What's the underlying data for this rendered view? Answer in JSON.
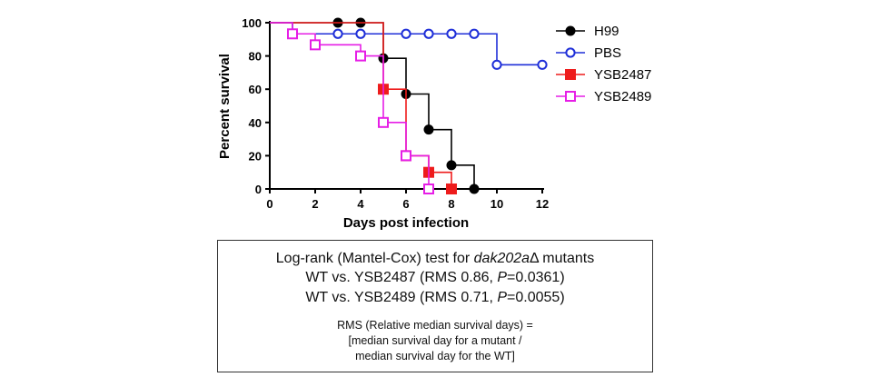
{
  "chart_data": {
    "type": "step",
    "xlabel": "Days post infection",
    "ylabel": "Percent survival",
    "xlim": [
      0,
      12
    ],
    "ylim": [
      0,
      100
    ],
    "xticks": [
      0,
      2,
      4,
      6,
      8,
      10,
      12
    ],
    "yticks": [
      0,
      20,
      40,
      60,
      80,
      100
    ],
    "legend_position": "right",
    "series": [
      {
        "name": "H99",
        "color": "#000000",
        "marker": "filled-circle",
        "points": [
          [
            0,
            100
          ],
          [
            3,
            100
          ],
          [
            4,
            100
          ],
          [
            5,
            78.6
          ],
          [
            6,
            57.1
          ],
          [
            7,
            35.7
          ],
          [
            8,
            14.3
          ],
          [
            9,
            0
          ]
        ]
      },
      {
        "name": "PBS",
        "color": "#1f2fd8",
        "marker": "open-circle",
        "points": [
          [
            0,
            100
          ],
          [
            1,
            93.3
          ],
          [
            3,
            93.3
          ],
          [
            4,
            93.3
          ],
          [
            6,
            93.3
          ],
          [
            7,
            93.3
          ],
          [
            8,
            93.3
          ],
          [
            9,
            93.3
          ],
          [
            10,
            74.7
          ],
          [
            12,
            74.7
          ]
        ]
      },
      {
        "name": "YSB2487",
        "color": "#ee1c1c",
        "marker": "filled-square",
        "points": [
          [
            0,
            100
          ],
          [
            5,
            60
          ],
          [
            6,
            20
          ],
          [
            7,
            10
          ],
          [
            8,
            0
          ]
        ]
      },
      {
        "name": "YSB2489",
        "color": "#e61ee6",
        "marker": "open-square",
        "points": [
          [
            0,
            100
          ],
          [
            1,
            93.3
          ],
          [
            2,
            86.7
          ],
          [
            4,
            80
          ],
          [
            5,
            40
          ],
          [
            6,
            20
          ],
          [
            7,
            0
          ]
        ]
      }
    ]
  },
  "stats": {
    "title_prefix": "Log-rank (Mantel-Cox) test for ",
    "gene": "dak202a",
    "delta": "Δ",
    "title_suffix": " mutants",
    "line1_prefix": "WT vs. YSB2487 (RMS 0.86, ",
    "line1_p": "P",
    "line1_suffix": "=0.0361)",
    "line2_prefix": "WT vs. YSB2489 (RMS 0.71, ",
    "line2_p": "P",
    "line2_suffix": "=0.0055)",
    "note_line1": "RMS (Relative median survival days) =",
    "note_line2": "[median survival day for a mutant  /",
    "note_line3": "median survival day for the WT]"
  }
}
